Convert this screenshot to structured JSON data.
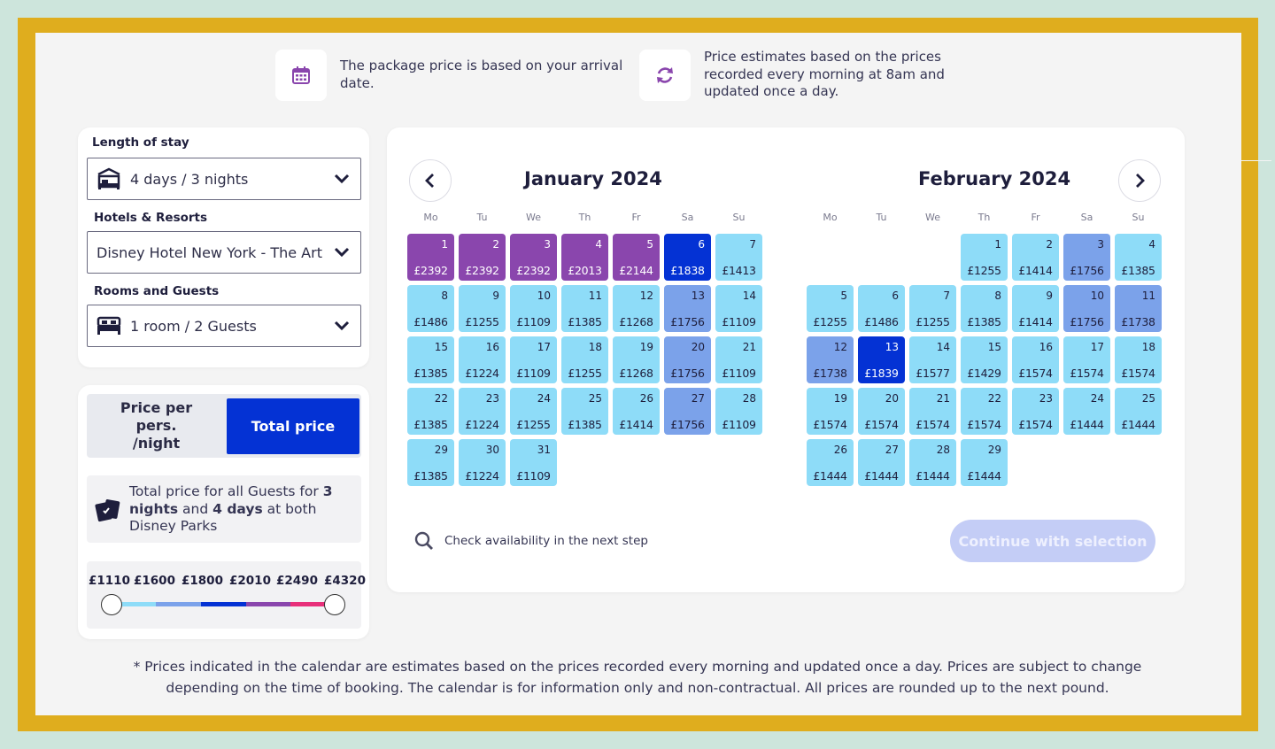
{
  "info": {
    "arrival_text": "The package price is based on your arrival date.",
    "estimate_text": "Price estimates based on the prices recorded every morning at 8am and updated once a day."
  },
  "icons": {
    "calendar": "calendar-icon",
    "refresh": "refresh-icon",
    "hotel": "hotel-bed-icon",
    "room": "bed-icon",
    "chevron": "chevron-down-icon",
    "tickets": "ticket-icon",
    "search": "search-icon",
    "prev": "chevron-left-icon",
    "next": "chevron-right-icon"
  },
  "colors": {
    "brand_dark": "#0432d4",
    "purple": "#8a46ad",
    "light_blue": "#8edcf8",
    "mid_blue": "#7ba2ea",
    "frame": "#dfad1e"
  },
  "filters": {
    "length_label": "Length of stay",
    "length_value": "4 days / 3 nights",
    "hotels_label": "Hotels & Resorts",
    "hotels_value": "Disney Hotel New York - The Art of Marvel",
    "rooms_label": "Rooms and Guests",
    "rooms_value": "1 room / 2 Guests"
  },
  "pricing": {
    "per_person": "Price per pers. /night",
    "total": "Total price",
    "note_part1": "Total price for all Guests for ",
    "note_nights": "3 nights",
    "note_and": " and ",
    "note_days": "4 days",
    "note_part2": " at both Disney Parks",
    "slider_labels": [
      "£1110",
      "£1600",
      "£1800",
      "£2010",
      "£2490",
      "£4320"
    ]
  },
  "calendar": {
    "weekdays": [
      "Mo",
      "Tu",
      "We",
      "Th",
      "Fr",
      "Sa",
      "Su"
    ],
    "months": [
      {
        "title": "January 2024",
        "offset": 0,
        "days": [
          [
            "1",
            "£2392",
            "purple"
          ],
          [
            "2",
            "£2392",
            "purple"
          ],
          [
            "3",
            "£2392",
            "purple"
          ],
          [
            "4",
            "£2013",
            "purple"
          ],
          [
            "5",
            "£2144",
            "purple"
          ],
          [
            "6",
            "£1838",
            "dark"
          ],
          [
            "7",
            "£1413",
            "light"
          ],
          [
            "8",
            "£1486",
            "light"
          ],
          [
            "9",
            "£1255",
            "light"
          ],
          [
            "10",
            "£1109",
            "light"
          ],
          [
            "11",
            "£1385",
            "light"
          ],
          [
            "12",
            "£1268",
            "light"
          ],
          [
            "13",
            "£1756",
            "mid"
          ],
          [
            "14",
            "£1109",
            "light"
          ],
          [
            "15",
            "£1385",
            "light"
          ],
          [
            "16",
            "£1224",
            "light"
          ],
          [
            "17",
            "£1109",
            "light"
          ],
          [
            "18",
            "£1255",
            "light"
          ],
          [
            "19",
            "£1268",
            "light"
          ],
          [
            "20",
            "£1756",
            "mid"
          ],
          [
            "21",
            "£1109",
            "light"
          ],
          [
            "22",
            "£1385",
            "light"
          ],
          [
            "23",
            "£1224",
            "light"
          ],
          [
            "24",
            "£1255",
            "light"
          ],
          [
            "25",
            "£1385",
            "light"
          ],
          [
            "26",
            "£1414",
            "light"
          ],
          [
            "27",
            "£1756",
            "mid"
          ],
          [
            "28",
            "£1109",
            "light"
          ],
          [
            "29",
            "£1385",
            "light"
          ],
          [
            "30",
            "£1224",
            "light"
          ],
          [
            "31",
            "£1109",
            "light"
          ]
        ]
      },
      {
        "title": "February 2024",
        "offset": 3,
        "days": [
          [
            "1",
            "£1255",
            "light"
          ],
          [
            "2",
            "£1414",
            "light"
          ],
          [
            "3",
            "£1756",
            "mid"
          ],
          [
            "4",
            "£1385",
            "light"
          ],
          [
            "5",
            "£1255",
            "light"
          ],
          [
            "6",
            "£1486",
            "light"
          ],
          [
            "7",
            "£1255",
            "light"
          ],
          [
            "8",
            "£1385",
            "light"
          ],
          [
            "9",
            "£1414",
            "light"
          ],
          [
            "10",
            "£1756",
            "mid"
          ],
          [
            "11",
            "£1738",
            "mid"
          ],
          [
            "12",
            "£1738",
            "mid"
          ],
          [
            "13",
            "£1839",
            "dark"
          ],
          [
            "14",
            "£1577",
            "light"
          ],
          [
            "15",
            "£1429",
            "light"
          ],
          [
            "16",
            "£1574",
            "light"
          ],
          [
            "17",
            "£1574",
            "light"
          ],
          [
            "18",
            "£1574",
            "light"
          ],
          [
            "19",
            "£1574",
            "light"
          ],
          [
            "20",
            "£1574",
            "light"
          ],
          [
            "21",
            "£1574",
            "light"
          ],
          [
            "22",
            "£1574",
            "light"
          ],
          [
            "23",
            "£1574",
            "light"
          ],
          [
            "24",
            "£1444",
            "light"
          ],
          [
            "25",
            "£1444",
            "light"
          ],
          [
            "26",
            "£1444",
            "light"
          ],
          [
            "27",
            "£1444",
            "light"
          ],
          [
            "28",
            "£1444",
            "light"
          ],
          [
            "29",
            "£1444",
            "light"
          ]
        ]
      }
    ],
    "check_text": "Check availability in the next step",
    "continue_label": "Continue with selection"
  },
  "footnote": "* Prices indicated in the calendar are estimates based on the prices recorded every morning and updated once a day. Prices are subject to change depending on the time of booking. The calendar is for information only and non-contractual. All prices are rounded up to the next pound."
}
